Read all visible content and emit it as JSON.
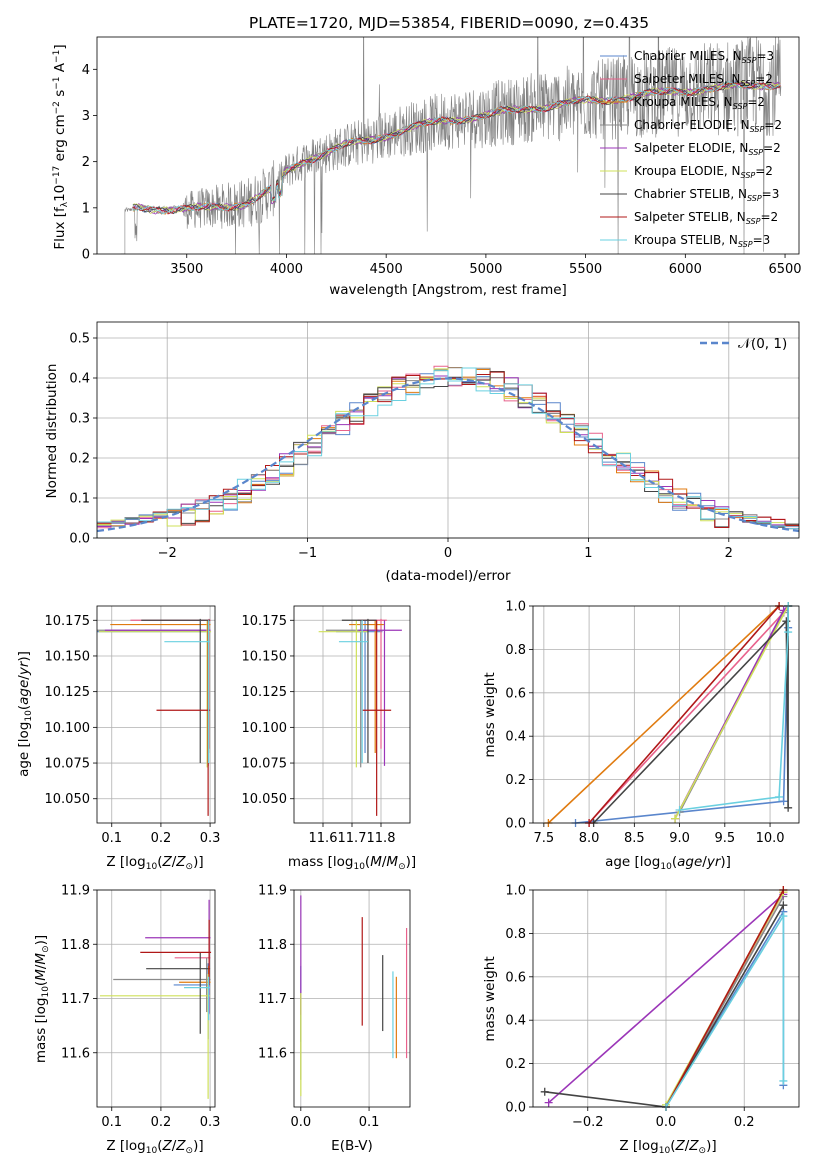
{
  "title": "PLATE=1720, MJD=53854, FIBERID=0090, z=0.435",
  "series_labels": {
    "s0": "Chabrier MILES, N",
    "s1": "Salpeter MILES, N",
    "s2": "Kroupa MILES, N",
    "s3": "Chabrier ELODIE, N",
    "s4": "Salpeter ELODIE, N",
    "s5": "Kroupa ELODIE, N",
    "s6": "Chabrier STELIB, N",
    "s7": "Salpeter STELIB, N",
    "s8": "Kroupa STELIB, N",
    "sub": "SSP",
    "n0": "=3",
    "n1": "=2",
    "n2": "=2",
    "n3": "=2",
    "n4": "=2",
    "n5": "=2",
    "n6": "=3",
    "n7": "=2",
    "n8": "=3"
  },
  "panel1": {
    "xlabel": "wavelength [Angstrom, rest frame]",
    "ylabel_main": "Flux [f",
    "ylabel_sub": "λ",
    "ylabel_rest": "10",
    "ylabel_exp1": "−17",
    "ylabel_unit": " erg cm",
    "ylabel_exp2": "−2",
    "ylabel_s": " s",
    "ylabel_exp3": "−1",
    "ylabel_a": " A",
    "ylabel_exp4": "−1",
    "ylabel_end": "]"
  },
  "panel2": {
    "xlabel": "(data-model)/error",
    "ylabel": "Normed distribution",
    "legend_normal": "𝒩(0, 1)"
  },
  "panel3": {
    "xlabel_pre": "Z [log",
    "xlabel_sub": "10",
    "xlabel_post": "(Z/Z",
    "xlabel_sun": "⊙",
    "xlabel_end": ")]",
    "ylabel": "age  [log10(age/yr)]"
  },
  "panel4": {
    "xlabel": "mass [log10(M/M⊙)]"
  },
  "panel5": {
    "xlabel": "age  [log10(age/yr)]",
    "ylabel": "mass weight"
  },
  "panel6": {
    "xlabel": "Z [log10(Z/Z⊙)]",
    "ylabel": "mass [log10(M/M⊙)]"
  },
  "panel7": {
    "xlabel": "E(B-V)"
  },
  "panel8": {
    "xlabel": "Z [log10(Z/Z⊙)]",
    "ylabel": "mass weight"
  },
  "chart_data": [
    {
      "id": "spectrum",
      "type": "line",
      "title": "PLATE=1720, MJD=53854, FIBERID=0090, z=0.435",
      "xlabel": "wavelength [Angstrom, rest frame]",
      "ylabel": "Flux [fλ10^-17 erg cm^-2 s^-1 A^-1]",
      "xlim": [
        3050,
        6570
      ],
      "ylim": [
        0,
        4.7
      ],
      "xticks": [
        3500,
        4000,
        4500,
        5000,
        5500,
        6000,
        6500
      ],
      "yticks": [
        0,
        1,
        2,
        3,
        4
      ],
      "grid": false,
      "legend": "top-right",
      "data_color": "#808080",
      "model_continuum": {
        "x": [
          3210,
          3250,
          3400,
          3500,
          3600,
          3700,
          3800,
          3870,
          3950,
          4000,
          4100,
          4200,
          4300,
          4400,
          4600,
          4800,
          5000,
          5200,
          5400,
          5600,
          5800,
          6000,
          6200,
          6400,
          6500
        ],
        "y": [
          0.95,
          1.02,
          0.98,
          0.95,
          1.0,
          1.05,
          1.1,
          1.25,
          1.45,
          1.8,
          2.05,
          2.2,
          2.35,
          2.45,
          2.7,
          2.9,
          3.0,
          3.15,
          3.25,
          3.35,
          3.45,
          3.55,
          3.6,
          3.68,
          3.7
        ]
      },
      "data_range": [
        3190,
        6480
      ]
    },
    {
      "id": "residuals",
      "type": "histogram",
      "xlabel": "(data-model)/error",
      "ylabel": "Normed distribution",
      "xlim": [
        -2.5,
        2.5
      ],
      "ylim": [
        0,
        0.54
      ],
      "xticks": [
        -2,
        -1,
        0,
        1,
        2
      ],
      "yticks": [
        0.0,
        0.1,
        0.2,
        0.3,
        0.4,
        0.5
      ],
      "grid": true,
      "legend": "top-right",
      "bin_width": 0.1,
      "normal_curve": "N(0,1)"
    },
    {
      "id": "age_vs_Z",
      "type": "errorbar",
      "xlabel": "Z [log10(Z/Z⊙)]",
      "ylabel": "age  [log10(age/yr)]",
      "xlim": [
        0.07,
        0.31
      ],
      "ylim": [
        10.033,
        10.185
      ],
      "xticks": [
        0.1,
        0.2,
        0.3
      ],
      "yticks": [
        10.05,
        10.075,
        10.1,
        10.125,
        10.15,
        10.175
      ],
      "points": [
        {
          "s": 0,
          "x": 0.296,
          "y": 10.167,
          "xerr": [
            0.23,
            0.005
          ],
          "yerr": [
            0.085,
            0.008
          ]
        },
        {
          "s": 1,
          "x": 0.298,
          "y": 10.175,
          "xerr": [
            0.16,
            0.003
          ],
          "yerr": [
            0.09,
            0.001
          ]
        },
        {
          "s": 2,
          "x": 0.297,
          "y": 10.172,
          "xerr": [
            0.2,
            0.004
          ],
          "yerr": [
            0.09,
            0.003
          ]
        },
        {
          "s": 3,
          "x": 0.295,
          "y": 10.168,
          "xerr": [
            0.23,
            0.005
          ],
          "yerr": [
            0.096,
            0.007
          ]
        },
        {
          "s": 4,
          "x": 0.296,
          "y": 10.168,
          "xerr": [
            0.21,
            0.005
          ],
          "yerr": [
            0.095,
            0.007
          ]
        },
        {
          "s": 5,
          "x": 0.294,
          "y": 10.167,
          "xerr": [
            0.22,
            0.008
          ],
          "yerr": [
            0.095,
            0.008
          ]
        },
        {
          "s": 6,
          "x": 0.28,
          "y": 10.175,
          "xerr": [
            0.12,
            0.02
          ],
          "yerr": [
            0.1,
            0.001
          ]
        },
        {
          "s": 7,
          "x": 0.296,
          "y": 10.112,
          "xerr": [
            0.105,
            0.004
          ],
          "yerr": [
            0.074,
            0.063
          ]
        },
        {
          "s": 8,
          "x": 0.297,
          "y": 10.16,
          "xerr": [
            0.09,
            0.003
          ],
          "yerr": [
            0.085,
            0.015
          ]
        }
      ]
    },
    {
      "id": "age_vs_mass",
      "type": "errorbar",
      "xlabel": "mass [log10(M/M⊙)]",
      "xlim": [
        11.5,
        11.9
      ],
      "ylim": [
        10.033,
        10.185
      ],
      "xticks": [
        11.6,
        11.7,
        11.8
      ],
      "yticks": [
        10.05,
        10.075,
        10.1,
        10.125,
        10.15,
        10.175
      ],
      "points": [
        {
          "s": 0,
          "x": 11.745,
          "y": 10.167,
          "xerr": [
            0.1,
            0.06
          ],
          "yerr": [
            0.085,
            0.008
          ]
        },
        {
          "s": 1,
          "x": 11.8,
          "y": 10.175,
          "xerr": [
            0.08,
            0.02
          ],
          "yerr": [
            0.09,
            0.001
          ]
        },
        {
          "s": 2,
          "x": 11.78,
          "y": 10.172,
          "xerr": [
            0.09,
            0.03
          ],
          "yerr": [
            0.09,
            0.003
          ]
        },
        {
          "s": 3,
          "x": 11.73,
          "y": 10.168,
          "xerr": [
            0.12,
            0.06
          ],
          "yerr": [
            0.096,
            0.007
          ]
        },
        {
          "s": 4,
          "x": 11.812,
          "y": 10.168,
          "xerr": [
            0.09,
            0.06
          ],
          "yerr": [
            0.095,
            0.007
          ]
        },
        {
          "s": 5,
          "x": 11.715,
          "y": 10.167,
          "xerr": [
            0.13,
            0.04
          ],
          "yerr": [
            0.095,
            0.008
          ]
        },
        {
          "s": 6,
          "x": 11.755,
          "y": 10.175,
          "xerr": [
            0.09,
            0.03
          ],
          "yerr": [
            0.1,
            0.001
          ]
        },
        {
          "s": 7,
          "x": 11.785,
          "y": 10.112,
          "xerr": [
            0.05,
            0.05
          ],
          "yerr": [
            0.074,
            0.063
          ]
        },
        {
          "s": 8,
          "x": 11.735,
          "y": 10.16,
          "xerr": [
            0.08,
            0.02
          ],
          "yerr": [
            0.085,
            0.015
          ]
        }
      ]
    },
    {
      "id": "weight_vs_age",
      "type": "line",
      "xlabel": "age  [log10(age/yr)]",
      "ylabel": "mass weight",
      "xlim": [
        7.38,
        10.32
      ],
      "ylim": [
        0,
        1
      ],
      "xticks": [
        7.5,
        8.0,
        8.5,
        9.0,
        9.5,
        10.0
      ],
      "yticks": [
        0.0,
        0.2,
        0.4,
        0.6,
        0.8,
        1.0
      ],
      "grid": true,
      "series": [
        {
          "s": 0,
          "x": [
            7.85,
            10.15,
            10.2,
            10.2
          ],
          "y": [
            0.0,
            0.1,
            0.9,
            1.0
          ]
        },
        {
          "s": 1,
          "x": [
            8.0,
            10.15,
            10.2
          ],
          "y": [
            0.0,
            0.97,
            1.0
          ]
        },
        {
          "s": 2,
          "x": [
            7.55,
            10.1
          ],
          "y": [
            0.0,
            1.0
          ]
        },
        {
          "s": 3,
          "x": [
            9.0,
            10.15,
            10.2
          ],
          "y": [
            0.05,
            0.97,
            1.0
          ]
        },
        {
          "s": 4,
          "x": [
            8.95,
            10.15,
            10.2
          ],
          "y": [
            0.02,
            0.98,
            1.0
          ]
        },
        {
          "s": 5,
          "x": [
            8.95,
            10.2
          ],
          "y": [
            0.02,
            1.0
          ]
        },
        {
          "s": 6,
          "x": [
            8.05,
            10.18,
            10.2,
            10.2
          ],
          "y": [
            0.0,
            0.93,
            0.07,
            1.0
          ]
        },
        {
          "s": 7,
          "x": [
            8.0,
            10.1
          ],
          "y": [
            0.0,
            1.0
          ]
        },
        {
          "s": 8,
          "x": [
            9.0,
            10.1,
            10.2,
            10.2
          ],
          "y": [
            0.06,
            0.12,
            0.88,
            1.0
          ]
        }
      ]
    },
    {
      "id": "mass_vs_Z",
      "type": "errorbar",
      "xlabel": "Z [log10(Z/Z⊙)]",
      "ylabel": "mass [log10(M/M⊙)]",
      "xlim": [
        0.07,
        0.31
      ],
      "ylim": [
        11.5,
        11.9
      ],
      "xticks": [
        0.1,
        0.2,
        0.3
      ],
      "yticks": [
        11.6,
        11.7,
        11.8,
        11.9
      ],
      "points": [
        {
          "s": 0,
          "x": 0.296,
          "y": 11.725,
          "xerr": [
            0.07,
            0.004
          ],
          "yerr": [
            0.1,
            0.04
          ]
        },
        {
          "s": 1,
          "x": 0.298,
          "y": 11.775,
          "xerr": [
            0.07,
            0.003
          ],
          "yerr": [
            0.03,
            0.04
          ]
        },
        {
          "s": 2,
          "x": 0.297,
          "y": 11.73,
          "xerr": [
            0.06,
            0.004
          ],
          "yerr": [
            0.06,
            0.03
          ]
        },
        {
          "s": 3,
          "x": 0.293,
          "y": 11.735,
          "xerr": [
            0.19,
            0.008
          ],
          "yerr": [
            0.06,
            0.04
          ]
        },
        {
          "s": 4,
          "x": 0.298,
          "y": 11.812,
          "xerr": [
            0.13,
            0.003
          ],
          "yerr": [
            0.14,
            0.07
          ]
        },
        {
          "s": 5,
          "x": 0.296,
          "y": 11.705,
          "xerr": [
            0.22,
            0.004
          ],
          "yerr": [
            0.19,
            0.04
          ]
        },
        {
          "s": 6,
          "x": 0.28,
          "y": 11.755,
          "xerr": [
            0.11,
            0.02
          ],
          "yerr": [
            0.12,
            0.03
          ]
        },
        {
          "s": 7,
          "x": 0.298,
          "y": 11.785,
          "xerr": [
            0.14,
            0.004
          ],
          "yerr": [
            0.06,
            0.06
          ]
        },
        {
          "s": 8,
          "x": 0.297,
          "y": 11.72,
          "xerr": [
            0.05,
            0.003
          ],
          "yerr": [
            0.06,
            0.02
          ]
        }
      ]
    },
    {
      "id": "mass_vs_ebv",
      "type": "errorbar",
      "xlabel": "E(B-V)",
      "xlim": [
        -0.01,
        0.16
      ],
      "ylim": [
        11.5,
        11.9
      ],
      "xticks": [
        0.0,
        0.1
      ],
      "yticks": [
        11.6,
        11.7,
        11.8,
        11.9
      ],
      "points": [
        {
          "s": 0,
          "x": 0.0,
          "y": 11.72,
          "yerr": [
            0.1,
            0.04
          ]
        },
        {
          "s": 1,
          "x": 0.155,
          "y": 11.7,
          "yerr": [
            0.11,
            0.13
          ]
        },
        {
          "s": 2,
          "x": 0.14,
          "y": 11.68,
          "yerr": [
            0.09,
            0.06
          ]
        },
        {
          "s": 3,
          "x": 0.0,
          "y": 11.68,
          "yerr": [
            0.13,
            0.03
          ]
        },
        {
          "s": 4,
          "x": 0.0,
          "y": 11.81,
          "yerr": [
            0.14,
            0.08
          ]
        },
        {
          "s": 5,
          "x": 0.0,
          "y": 11.66,
          "yerr": [
            0.14,
            0.05
          ]
        },
        {
          "s": 6,
          "x": 0.12,
          "y": 11.71,
          "yerr": [
            0.07,
            0.07
          ]
        },
        {
          "s": 7,
          "x": 0.09,
          "y": 11.75,
          "yerr": [
            0.1,
            0.1
          ]
        },
        {
          "s": 8,
          "x": 0.135,
          "y": 11.67,
          "yerr": [
            0.08,
            0.08
          ]
        }
      ]
    },
    {
      "id": "weight_vs_Z",
      "type": "line",
      "xlabel": "Z [log10(Z/Z⊙)]",
      "ylabel": "mass weight",
      "xlim": [
        -0.34,
        0.34
      ],
      "ylim": [
        0,
        1
      ],
      "xticks": [
        -0.2,
        0.0,
        0.2
      ],
      "yticks": [
        0.0,
        0.2,
        0.4,
        0.6,
        0.8,
        1.0
      ],
      "grid": true,
      "series": [
        {
          "s": 0,
          "x": [
            0.0,
            0.3,
            0.3
          ],
          "y": [
            0.0,
            0.9,
            0.1
          ]
        },
        {
          "s": 1,
          "x": [
            0.0,
            0.3
          ],
          "y": [
            0.0,
            0.99
          ]
        },
        {
          "s": 2,
          "x": [
            0.0,
            0.3
          ],
          "y": [
            0.0,
            1.0
          ]
        },
        {
          "s": 3,
          "x": [
            0.0,
            0.3
          ],
          "y": [
            0.0,
            0.97
          ]
        },
        {
          "s": 4,
          "x": [
            -0.3,
            0.3
          ],
          "y": [
            0.02,
            0.98
          ]
        },
        {
          "s": 5,
          "x": [
            0.0,
            0.3
          ],
          "y": [
            0.01,
            0.99
          ]
        },
        {
          "s": 6,
          "x": [
            -0.31,
            0.0,
            0.3
          ],
          "y": [
            0.07,
            0.0,
            0.93
          ]
        },
        {
          "s": 7,
          "x": [
            0.0,
            0.3
          ],
          "y": [
            0.0,
            1.0
          ]
        },
        {
          "s": 8,
          "x": [
            0.0,
            0.3,
            0.3
          ],
          "y": [
            0.0,
            0.88,
            0.12
          ]
        }
      ]
    }
  ],
  "colors": [
    "#5a86cc",
    "#e8628c",
    "#e07b10",
    "#8a8a8a",
    "#9b36b8",
    "#cfe05a",
    "#444444",
    "#b01818",
    "#6ad0e0"
  ],
  "normal_color": "#5a86cc"
}
